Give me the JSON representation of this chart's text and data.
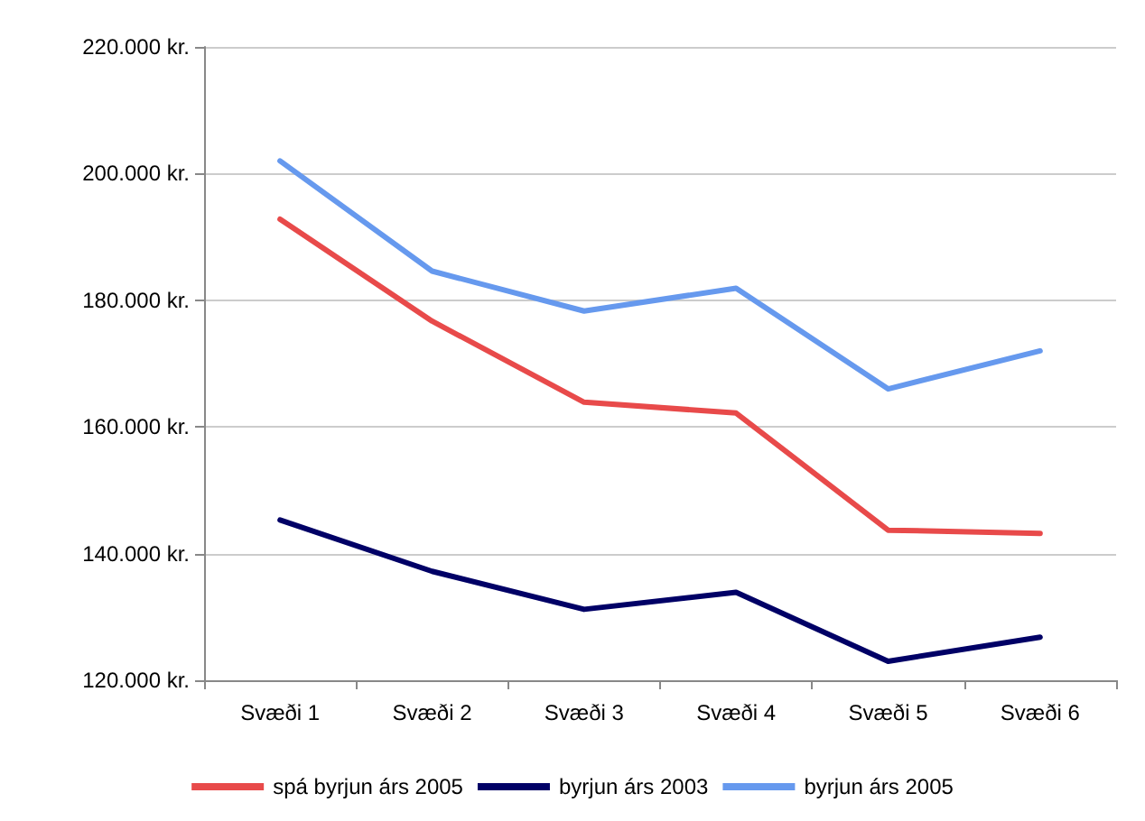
{
  "chart_data": {
    "type": "line",
    "categories": [
      "Svæði 1",
      "Svæði 2",
      "Svæði 3",
      "Svæði 4",
      "Svæði 5",
      "Svæði 6"
    ],
    "series": [
      {
        "name": "spá byrjun árs 2005",
        "color": "#e84a4a",
        "values": [
          192800,
          176700,
          163900,
          162200,
          143700,
          143200
        ]
      },
      {
        "name": "byrjun árs 2003",
        "color": "#000066",
        "values": [
          145300,
          137200,
          131200,
          133900,
          123000,
          126800
        ]
      },
      {
        "name": "byrjun árs 2005",
        "color": "#6699ee",
        "values": [
          202000,
          184600,
          178300,
          181900,
          166000,
          172000
        ]
      }
    ],
    "ylim": [
      120000,
      220000
    ],
    "yticks": [
      {
        "value": 120000,
        "label": "120.000 kr."
      },
      {
        "value": 140000,
        "label": "140.000 kr."
      },
      {
        "value": 160000,
        "label": "160.000 kr."
      },
      {
        "value": 180000,
        "label": "180.000 kr."
      },
      {
        "value": 200000,
        "label": "200.000 kr."
      },
      {
        "value": 220000,
        "label": "220.000 kr."
      }
    ],
    "grid": "y",
    "legend": "bottom",
    "marker": "none",
    "line_style": "solid"
  }
}
